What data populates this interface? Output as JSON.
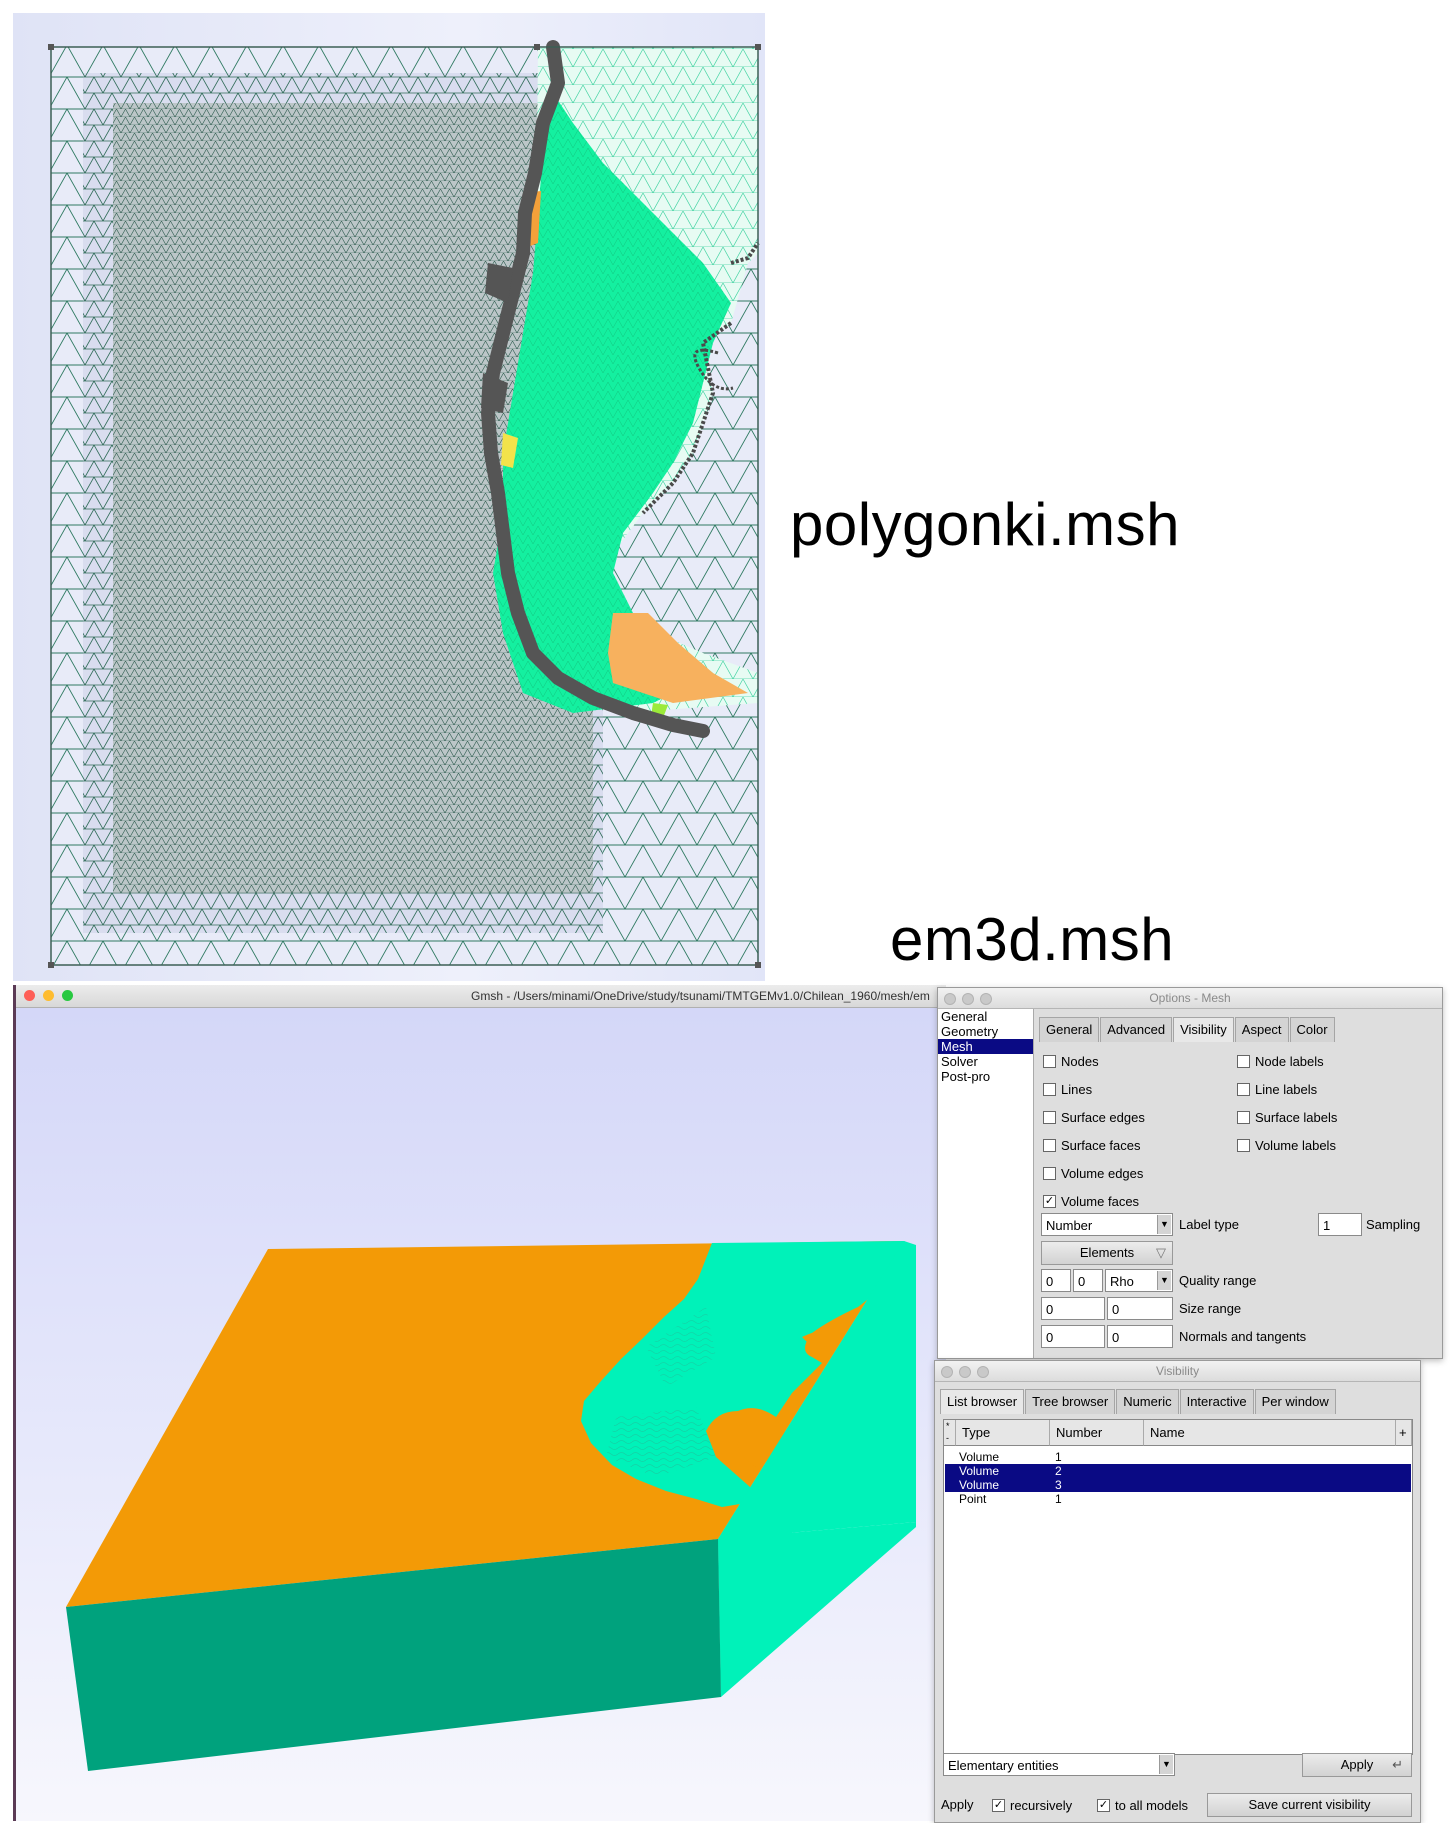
{
  "captions": {
    "top": "polygonki.msh",
    "bottom": "em3d.msh"
  },
  "gmsh_window": {
    "title": "Gmsh - /Users/minami/OneDrive/study/tsunami/TMTGEMv1.0/Chilean_1960/mesh/em"
  },
  "options_window": {
    "title": "Options - Mesh",
    "categories": [
      "General",
      "Geometry",
      "Mesh",
      "Solver",
      "Post-pro"
    ],
    "selected_category": "Mesh",
    "tabs": [
      "General",
      "Advanced",
      "Visibility",
      "Aspect",
      "Color"
    ],
    "active_tab": "Visibility",
    "checkboxes_left": [
      {
        "label": "Nodes",
        "checked": false
      },
      {
        "label": "Lines",
        "checked": false
      },
      {
        "label": "Surface edges",
        "checked": false
      },
      {
        "label": "Surface faces",
        "checked": false
      },
      {
        "label": "Volume edges",
        "checked": false
      },
      {
        "label": "Volume faces",
        "checked": true
      }
    ],
    "checkboxes_right": [
      {
        "label": "Node labels",
        "checked": false
      },
      {
        "label": "Line labels",
        "checked": false
      },
      {
        "label": "Surface labels",
        "checked": false
      },
      {
        "label": "Volume labels",
        "checked": false
      }
    ],
    "label_type_value": "Number",
    "label_type_label": "Label type",
    "sampling_value": "1",
    "sampling_label": "Sampling",
    "elements_button": "Elements",
    "quality_min": "0",
    "quality_max": "0",
    "quality_measure": "Rho",
    "quality_label": "Quality range",
    "size_min": "0",
    "size_max": "0",
    "size_label": "Size range",
    "normals_a": "0",
    "normals_b": "0",
    "normals_label": "Normals and tangents"
  },
  "visibility_window": {
    "title": "Visibility",
    "tabs": [
      "List browser",
      "Tree browser",
      "Numeric",
      "Interactive",
      "Per window"
    ],
    "active_tab": "List browser",
    "columns": [
      "Type",
      "Number",
      "Name"
    ],
    "sort_buttons": [
      "*",
      "-"
    ],
    "add_button": "+",
    "rows": [
      {
        "type": "Volume",
        "number": "1",
        "selected": false
      },
      {
        "type": "Volume",
        "number": "2",
        "selected": true
      },
      {
        "type": "Volume",
        "number": "3",
        "selected": true
      },
      {
        "type": "Point",
        "number": "1",
        "selected": false
      }
    ],
    "entity_select": "Elementary entities",
    "apply_button": "Apply",
    "apply_label": "Apply",
    "recursively_label": "recursively",
    "recursively_checked": true,
    "all_models_label": "to all models",
    "all_models_checked": true,
    "save_button": "Save current visibility"
  },
  "colors": {
    "orange": "#f39a06",
    "cyan": "#00f2b9",
    "teal": "#00a27d",
    "selection": "#0a0a84",
    "mesh_line": "#2d5b4e",
    "coast": "#5a5a5a"
  }
}
